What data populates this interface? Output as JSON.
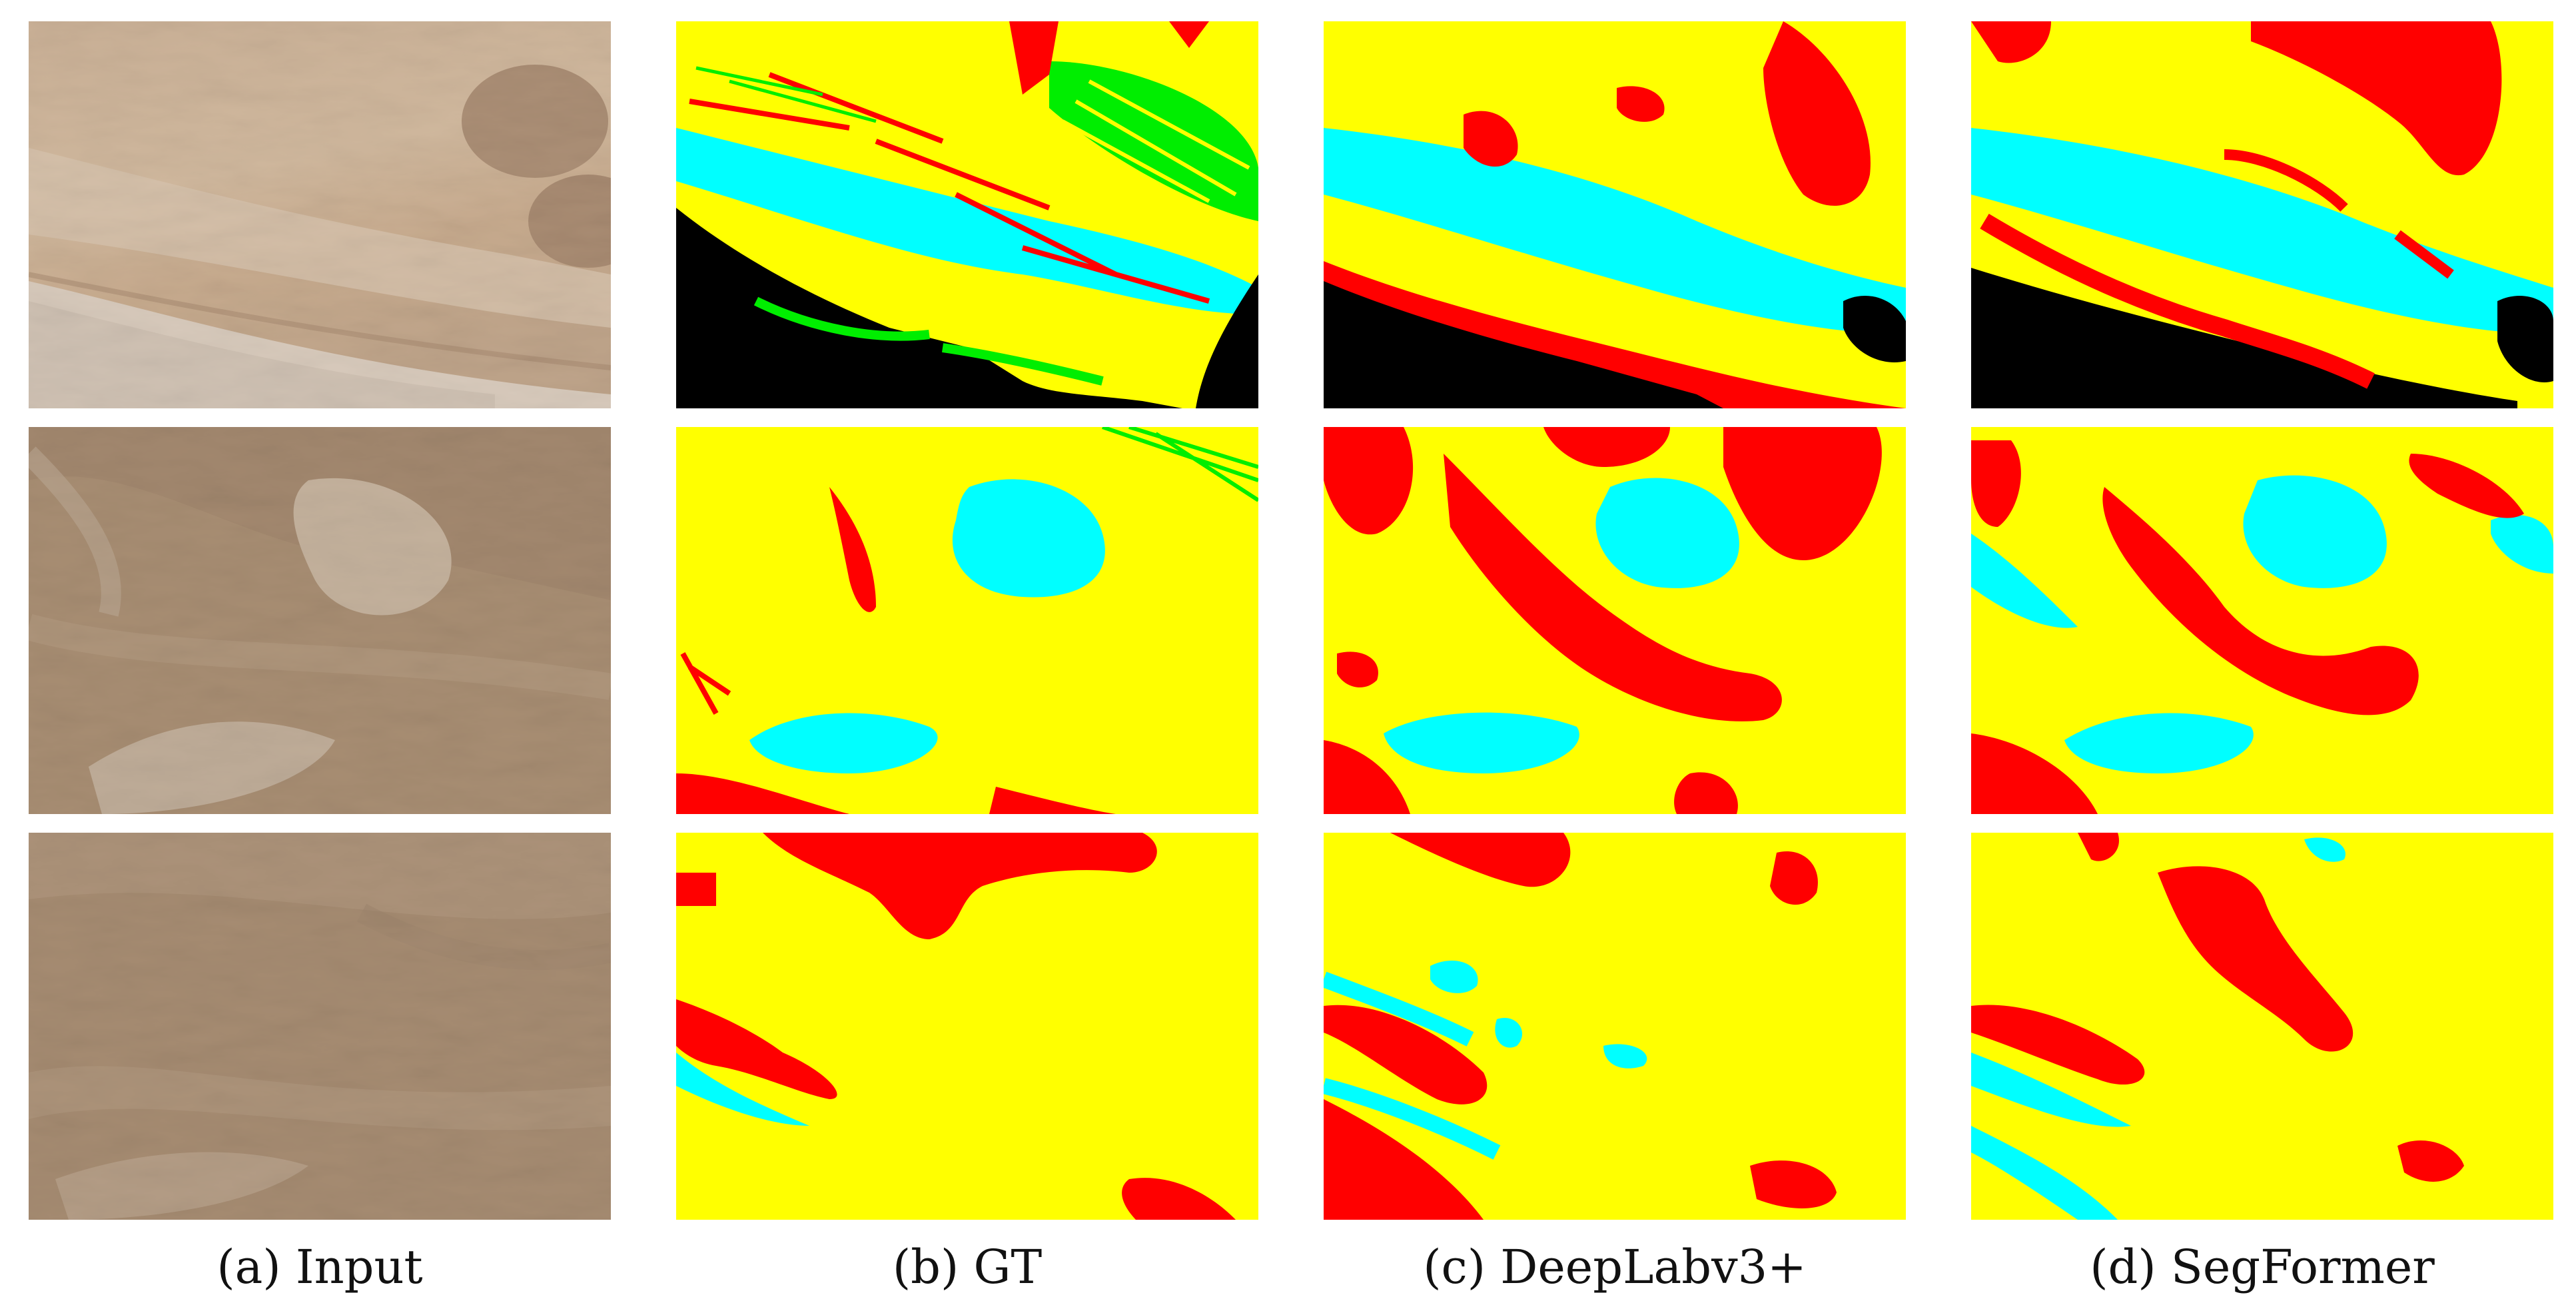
{
  "captions": [
    "(a) Input",
    "(b) GT",
    "(c) DeepLabv3+",
    "(d) SegFormer"
  ],
  "legend_colors": {
    "yellow": "#ffff00",
    "cyan": "#00ffff",
    "red": "#ff0000",
    "green": "#00ee00",
    "black": "#000000"
  }
}
